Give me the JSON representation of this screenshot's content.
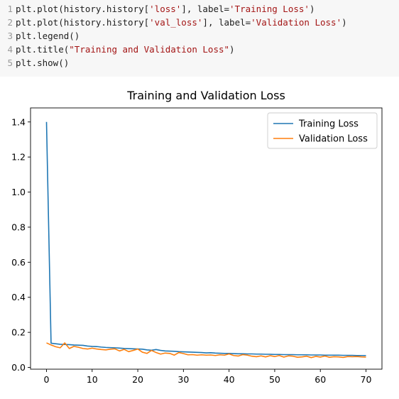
{
  "code": {
    "lines": [
      {
        "num": "1",
        "parts": [
          {
            "t": "plt.plot(history.history[",
            "k": "plain"
          },
          {
            "t": "'loss'",
            "k": "str"
          },
          {
            "t": "], label=",
            "k": "plain"
          },
          {
            "t": "'Training Loss'",
            "k": "str"
          },
          {
            "t": ")",
            "k": "plain"
          }
        ]
      },
      {
        "num": "2",
        "parts": [
          {
            "t": "plt.plot(history.history[",
            "k": "plain"
          },
          {
            "t": "'val_loss'",
            "k": "str"
          },
          {
            "t": "], label=",
            "k": "plain"
          },
          {
            "t": "'Validation Loss'",
            "k": "str"
          },
          {
            "t": ")",
            "k": "plain"
          }
        ]
      },
      {
        "num": "3",
        "parts": [
          {
            "t": "plt.legend()",
            "k": "plain"
          }
        ]
      },
      {
        "num": "4",
        "parts": [
          {
            "t": "plt.title(",
            "k": "plain"
          },
          {
            "t": "\"Training and Validation Loss\"",
            "k": "str"
          },
          {
            "t": ")",
            "k": "plain"
          }
        ]
      },
      {
        "num": "5",
        "parts": [
          {
            "t": "plt.show()",
            "k": "plain"
          }
        ]
      }
    ]
  },
  "chart_data": {
    "type": "line",
    "title": "Training and Validation Loss",
    "xlim": [
      -3.5,
      73.5
    ],
    "ylim": [
      -0.01,
      1.48
    ],
    "xticks": [
      0,
      10,
      20,
      30,
      40,
      50,
      60,
      70
    ],
    "yticks": [
      0.0,
      0.2,
      0.4,
      0.6,
      0.8,
      1.0,
      1.2,
      1.4
    ],
    "legend_position": "top-right",
    "series": [
      {
        "name": "Training Loss",
        "color": "#1f77b4",
        "x": [
          0,
          1,
          2,
          3,
          4,
          5,
          6,
          7,
          8,
          9,
          10,
          11,
          12,
          13,
          14,
          15,
          16,
          17,
          18,
          19,
          20,
          21,
          22,
          23,
          24,
          25,
          26,
          27,
          28,
          29,
          30,
          31,
          32,
          33,
          34,
          35,
          36,
          37,
          38,
          39,
          40,
          41,
          42,
          43,
          44,
          45,
          46,
          47,
          48,
          49,
          50,
          51,
          52,
          53,
          54,
          55,
          56,
          57,
          58,
          59,
          60,
          61,
          62,
          63,
          64,
          65,
          66,
          67,
          68,
          69,
          70
        ],
        "values": [
          1.4,
          0.138,
          0.135,
          0.132,
          0.131,
          0.13,
          0.128,
          0.127,
          0.126,
          0.122,
          0.12,
          0.119,
          0.116,
          0.114,
          0.113,
          0.112,
          0.11,
          0.108,
          0.107,
          0.106,
          0.105,
          0.104,
          0.1,
          0.098,
          0.102,
          0.097,
          0.094,
          0.093,
          0.092,
          0.09,
          0.089,
          0.088,
          0.087,
          0.086,
          0.085,
          0.083,
          0.084,
          0.082,
          0.081,
          0.08,
          0.08,
          0.079,
          0.078,
          0.078,
          0.077,
          0.077,
          0.076,
          0.076,
          0.075,
          0.075,
          0.074,
          0.074,
          0.073,
          0.073,
          0.073,
          0.072,
          0.072,
          0.072,
          0.071,
          0.071,
          0.071,
          0.07,
          0.07,
          0.07,
          0.07,
          0.069,
          0.069,
          0.069,
          0.068,
          0.068,
          0.068
        ]
      },
      {
        "name": "Validation Loss",
        "color": "#ff7f0e",
        "x": [
          0,
          1,
          2,
          3,
          4,
          5,
          6,
          7,
          8,
          9,
          10,
          11,
          12,
          13,
          14,
          15,
          16,
          17,
          18,
          19,
          20,
          21,
          22,
          23,
          24,
          25,
          26,
          27,
          28,
          29,
          30,
          31,
          32,
          33,
          34,
          35,
          36,
          37,
          38,
          39,
          40,
          41,
          42,
          43,
          44,
          45,
          46,
          47,
          48,
          49,
          50,
          51,
          52,
          53,
          54,
          55,
          56,
          57,
          58,
          59,
          60,
          61,
          62,
          63,
          64,
          65,
          66,
          67,
          68,
          69,
          70
        ],
        "values": [
          0.14,
          0.128,
          0.118,
          0.112,
          0.14,
          0.108,
          0.12,
          0.115,
          0.108,
          0.105,
          0.11,
          0.105,
          0.102,
          0.1,
          0.104,
          0.106,
          0.094,
          0.103,
          0.09,
          0.097,
          0.105,
          0.087,
          0.08,
          0.097,
          0.085,
          0.076,
          0.082,
          0.08,
          0.07,
          0.085,
          0.079,
          0.072,
          0.073,
          0.07,
          0.072,
          0.07,
          0.071,
          0.068,
          0.072,
          0.07,
          0.077,
          0.068,
          0.065,
          0.073,
          0.07,
          0.064,
          0.061,
          0.066,
          0.06,
          0.067,
          0.062,
          0.068,
          0.059,
          0.066,
          0.064,
          0.058,
          0.06,
          0.064,
          0.056,
          0.063,
          0.059,
          0.065,
          0.058,
          0.061,
          0.06,
          0.057,
          0.062,
          0.061,
          0.062,
          0.06,
          0.059
        ]
      }
    ]
  }
}
